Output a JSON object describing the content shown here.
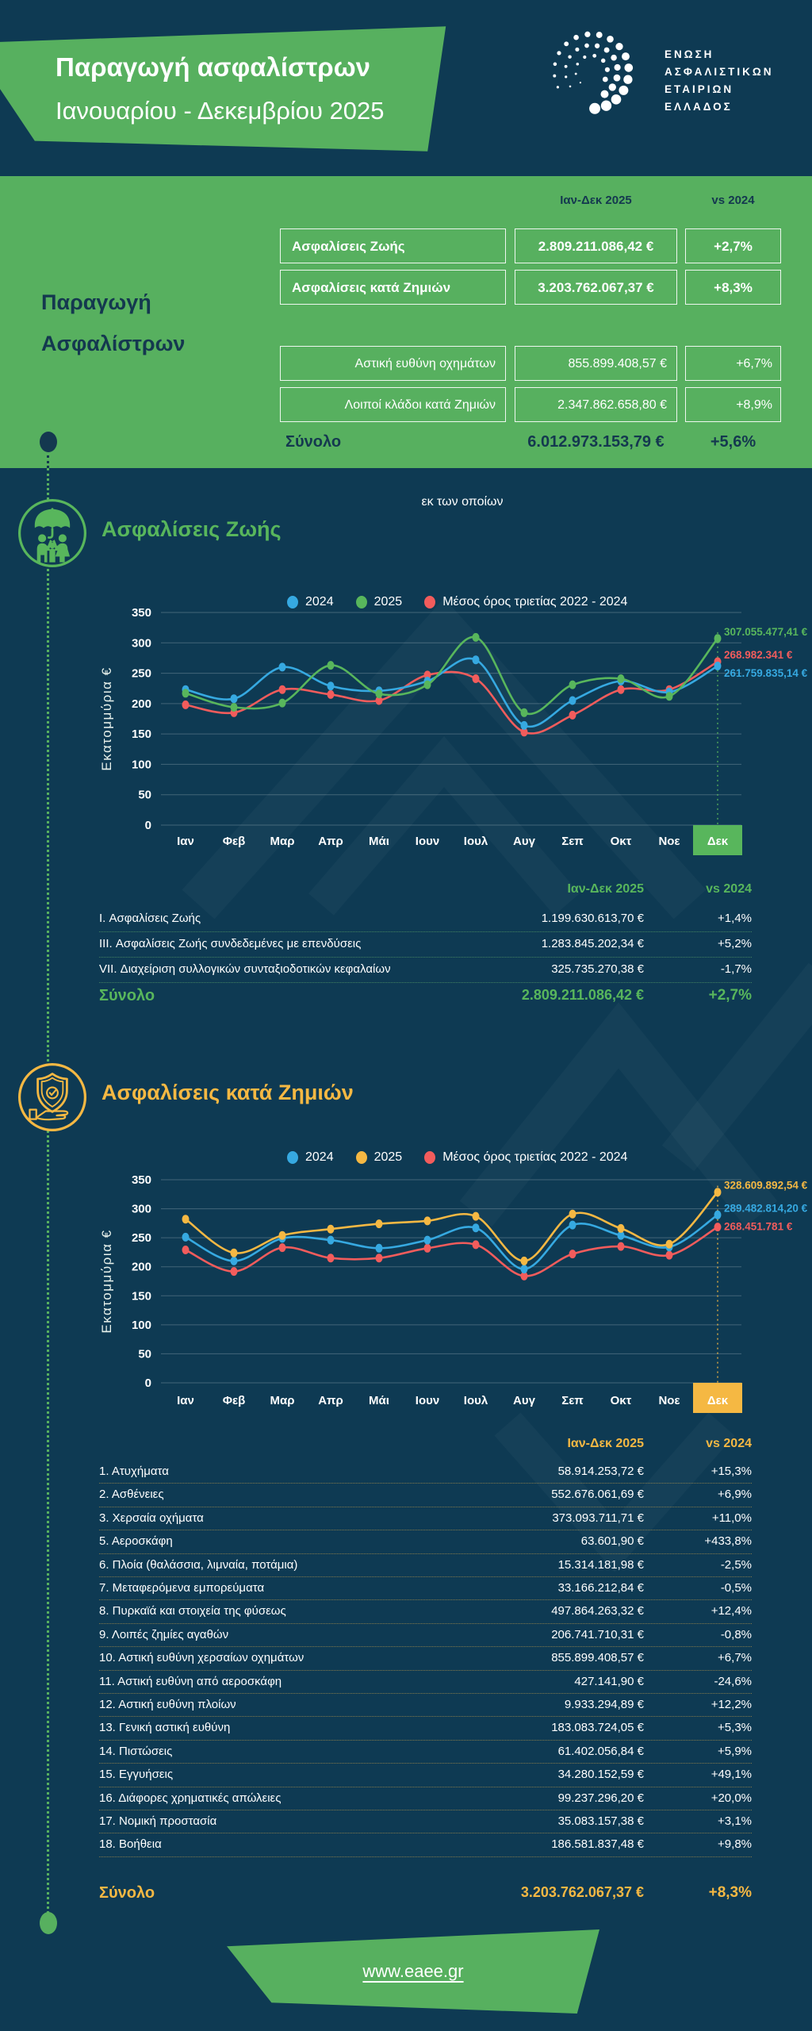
{
  "header": {
    "title": "Παραγωγή ασφαλίστρων",
    "subtitle": "Ιανουαρίου - Δεκεμβρίου 2025",
    "org": [
      "ΕΝΩΣΗ",
      "ΑΣΦΑΛΙΣΤΙΚΩΝ",
      "ΕΤΑΙΡΙΩΝ",
      "ΕΛΛΑΔΟΣ"
    ]
  },
  "summary": {
    "title_line1": "Παραγωγή",
    "title_line2": "Ασφαλίστρων",
    "col_period": "Ιαν-Δεκ 2025",
    "col_vs": "vs 2024",
    "rows": [
      {
        "label": "Ασφαλίσεις Ζωής",
        "value": "2.809.211.086,42 €",
        "pct": "+2,7%"
      },
      {
        "label": "Ασφαλίσεις κατά Ζημιών",
        "value": "3.203.762.067,37 €",
        "pct": "+8,3%"
      }
    ],
    "subnote": "εκ των οποίων",
    "subrows": [
      {
        "label": "Αστική ευθύνη οχημάτων",
        "value": "855.899.408,57 €",
        "pct": "+6,7%"
      },
      {
        "label": "Λοιποί κλάδοι κατά Ζημιών",
        "value": "2.347.862.658,80 €",
        "pct": "+8,9%"
      }
    ],
    "total": {
      "label": "Σύνολο",
      "value": "6.012.973.153,79 €",
      "pct": "+5,6%"
    }
  },
  "life": {
    "title": "Ασφαλίσεις Ζωής",
    "col_period": "Ιαν-Δεκ 2025",
    "col_vs": "vs 2024",
    "rows": [
      {
        "label": "I. Ασφαλίσεις Ζωής",
        "value": "1.199.630.613,70 €",
        "pct": "+1,4%"
      },
      {
        "label": "III. Ασφαλίσεις Ζωής συνδεδεμένες με επενδύσεις",
        "value": "1.283.845.202,34 €",
        "pct": "+5,2%"
      },
      {
        "label": "VII. Διαχείριση συλλογικών συνταξιοδοτικών κεφαλαίων",
        "value": "325.735.270,38 €",
        "pct": "-1,7%"
      }
    ],
    "total": {
      "label": "Σύνολο",
      "value": "2.809.211.086,42 €",
      "pct": "+2,7%"
    }
  },
  "nonlife": {
    "title": "Ασφαλίσεις κατά Ζημιών",
    "col_period": "Ιαν-Δεκ 2025",
    "col_vs": "vs 2024",
    "rows": [
      {
        "label": "1. Ατυχήματα",
        "value": "58.914.253,72 €",
        "pct": "+15,3%"
      },
      {
        "label": "2. Ασθένειες",
        "value": "552.676.061,69 €",
        "pct": "+6,9%"
      },
      {
        "label": "3. Χερσαία οχήματα",
        "value": "373.093.711,71 €",
        "pct": "+11,0%"
      },
      {
        "label": "5. Αεροσκάφη",
        "value": "63.601,90 €",
        "pct": "+433,8%"
      },
      {
        "label": "6. Πλοία (θαλάσσια, λιμναία, ποτάμια)",
        "value": "15.314.181,98 €",
        "pct": "-2,5%"
      },
      {
        "label": "7. Μεταφερόμενα εμπορεύματα",
        "value": "33.166.212,84 €",
        "pct": "-0,5%"
      },
      {
        "label": "8. Πυρκαϊά και στοιχεία της φύσεως",
        "value": "497.864.263,32 €",
        "pct": "+12,4%"
      },
      {
        "label": "9. Λοιπές ζημίες αγαθών",
        "value": "206.741.710,31 €",
        "pct": "-0,8%"
      },
      {
        "label": "10. Αστική ευθύνη χερσαίων οχημάτων",
        "value": "855.899.408,57 €",
        "pct": "+6,7%"
      },
      {
        "label": "11. Αστική ευθύνη από αεροσκάφη",
        "value": "427.141,90 €",
        "pct": "-24,6%"
      },
      {
        "label": "12. Αστική ευθύνη πλοίων",
        "value": "9.933.294,89 €",
        "pct": "+12,2%"
      },
      {
        "label": "13. Γενική αστική ευθύνη",
        "value": "183.083.724,05 €",
        "pct": "+5,3%"
      },
      {
        "label": "14. Πιστώσεις",
        "value": "61.402.056,84 €",
        "pct": "+5,9%"
      },
      {
        "label": "15. Εγγυήσεις",
        "value": "34.280.152,59 €",
        "pct": "+49,1%"
      },
      {
        "label": "16. Διάφορες χρηματικές απώλειες",
        "value": "99.237.296,20 €",
        "pct": "+20,0%"
      },
      {
        "label": "17. Νομική προστασία",
        "value": "35.083.157,38 €",
        "pct": "+3,1%"
      },
      {
        "label": "18. Βοήθεια",
        "value": "186.581.837,48 €",
        "pct": "+9,8%"
      }
    ],
    "total": {
      "label": "Σύνολο",
      "value": "3.203.762.067,37 €",
      "pct": "+8,3%"
    }
  },
  "footer": {
    "url": "www.eaee.gr"
  },
  "colors": {
    "navy_bg": "#0e3a53",
    "green": "#57b05f",
    "navy_text": "#14384f",
    "blue": "#36a9e1",
    "chart_green": "#58b65c",
    "amber": "#f5b843",
    "red": "#f25c5c"
  },
  "chart_data": [
    {
      "id": "life",
      "type": "line",
      "title": "Ασφαλίσεις Ζωής",
      "ylabel": "Εκατομμύρια €",
      "ylim": [
        0,
        350
      ],
      "ytick_step": 50,
      "grid": true,
      "legend_position": "top",
      "categories": [
        "Ιαν",
        "Φεβ",
        "Μαρ",
        "Απρ",
        "Μάι",
        "Ιουν",
        "Ιουλ",
        "Αυγ",
        "Σεπ",
        "Οκτ",
        "Νοε",
        "Δεκ"
      ],
      "highlight_month": "Δεκ",
      "accent": "#58b65c",
      "series": [
        {
          "name": "2024",
          "color": "#36a9e1",
          "values": [
            223,
            208,
            260,
            229,
            221,
            237,
            272,
            164,
            205,
            237,
            219,
            261.8
          ],
          "end_label": "261.759.835,14 €"
        },
        {
          "name": "2025",
          "color": "#58b65c",
          "values": [
            217,
            194,
            201,
            263,
            216,
            231,
            309,
            185,
            231,
            241,
            212,
            307.1
          ],
          "end_label": "307.055.477,41 €"
        },
        {
          "name": "Μέσος όρος τριετίας 2022 - 2024",
          "color": "#f25c5c",
          "values": [
            198,
            185,
            223,
            215,
            205,
            247,
            241,
            153,
            181,
            223,
            223,
            269.0
          ],
          "end_label": "268.982.341 €"
        }
      ]
    },
    {
      "id": "nonlife",
      "type": "line",
      "title": "Ασφαλίσεις κατά Ζημιών",
      "ylabel": "Εκατομμύρια €",
      "ylim": [
        0,
        350
      ],
      "ytick_step": 50,
      "grid": true,
      "legend_position": "top",
      "categories": [
        "Ιαν",
        "Φεβ",
        "Μαρ",
        "Απρ",
        "Μάι",
        "Ιουν",
        "Ιουλ",
        "Αυγ",
        "Σεπ",
        "Οκτ",
        "Νοε",
        "Δεκ"
      ],
      "highlight_month": "Δεκ",
      "accent": "#f5b843",
      "series": [
        {
          "name": "2024",
          "color": "#36a9e1",
          "values": [
            251,
            210,
            249,
            246,
            232,
            246,
            267,
            196,
            272,
            254,
            234,
            289.5
          ],
          "end_label": "289.482.814,20 €"
        },
        {
          "name": "2025",
          "color": "#f5b843",
          "values": [
            282,
            224,
            254,
            265,
            274,
            279,
            287,
            210,
            291,
            266,
            239,
            328.6
          ],
          "end_label": "328.609.892,54 €"
        },
        {
          "name": "Μέσος όρος τριετίας 2022 - 2024",
          "color": "#f25c5c",
          "values": [
            229,
            192,
            233,
            215,
            215,
            232,
            238,
            184,
            222,
            235,
            220,
            268.5
          ],
          "end_label": "268.451.781 €"
        }
      ]
    }
  ]
}
